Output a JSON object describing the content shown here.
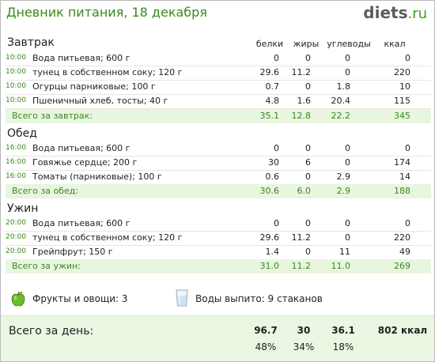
{
  "header": {
    "title": "Дневник питания, 18 декабря",
    "brand_main": "diets",
    "brand_tld": ".ru"
  },
  "columns": {
    "protein": "белки",
    "fat": "жиры",
    "carbs": "углеводы",
    "kcal": "ккал"
  },
  "meals": [
    {
      "title": "Завтрак",
      "items": [
        {
          "time": "10:00",
          "name": "Вода питьевая; 600 г",
          "protein": "0",
          "fat": "0",
          "carbs": "0",
          "kcal": "0"
        },
        {
          "time": "10:00",
          "name": "тунец в собственном соку; 120 г",
          "protein": "29.6",
          "fat": "11.2",
          "carbs": "0",
          "kcal": "220"
        },
        {
          "time": "10:00",
          "name": "Огурцы парниковые; 100 г",
          "protein": "0.7",
          "fat": "0",
          "carbs": "1.8",
          "kcal": "10"
        },
        {
          "time": "10:00",
          "name": "Пшеничный хлеб, тосты; 40 г",
          "protein": "4.8",
          "fat": "1.6",
          "carbs": "20.4",
          "kcal": "115"
        }
      ],
      "total": {
        "label": "Всего за завтрак:",
        "protein": "35.1",
        "fat": "12.8",
        "carbs": "22.2",
        "kcal": "345"
      }
    },
    {
      "title": "Обед",
      "items": [
        {
          "time": "16:00",
          "name": "Вода питьевая; 600 г",
          "protein": "0",
          "fat": "0",
          "carbs": "0",
          "kcal": "0"
        },
        {
          "time": "16:00",
          "name": "Говяжье сердце; 200 г",
          "protein": "30",
          "fat": "6",
          "carbs": "0",
          "kcal": "174"
        },
        {
          "time": "16:00",
          "name": "Томаты (парниковые); 100 г",
          "protein": "0.6",
          "fat": "0",
          "carbs": "2.9",
          "kcal": "14"
        }
      ],
      "total": {
        "label": "Всего за обед:",
        "protein": "30.6",
        "fat": "6.0",
        "carbs": "2.9",
        "kcal": "188"
      }
    },
    {
      "title": "Ужин",
      "items": [
        {
          "time": "20:00",
          "name": "Вода питьевая; 600 г",
          "protein": "0",
          "fat": "0",
          "carbs": "0",
          "kcal": "0"
        },
        {
          "time": "20:00",
          "name": "тунец в собственном соку; 120 г",
          "protein": "29.6",
          "fat": "11.2",
          "carbs": "0",
          "kcal": "220"
        },
        {
          "time": "20:00",
          "name": "Грейпфрут; 150 г",
          "protein": "1.4",
          "fat": "0",
          "carbs": "11",
          "kcal": "49"
        }
      ],
      "total": {
        "label": "Всего за ужин:",
        "protein": "31.0",
        "fat": "11.2",
        "carbs": "11.0",
        "kcal": "269"
      }
    }
  ],
  "extras": {
    "fruits_label": "Фрукты и овощи: 3",
    "water_label": "Воды выпито: 9 стаканов",
    "fruit_icon": "green-apple-icon",
    "water_icon": "water-glass-icon"
  },
  "day_total": {
    "label": "Всего за день:",
    "protein": "96.7",
    "fat": "30",
    "carbs": "36.1",
    "kcal": "802 ккал",
    "protein_pct": "48%",
    "fat_pct": "34%",
    "carbs_pct": "18%"
  },
  "colors": {
    "accent_green": "#3a8a1d",
    "total_bg": "#e8f6e0",
    "day_bg": "#eaf7e3"
  }
}
